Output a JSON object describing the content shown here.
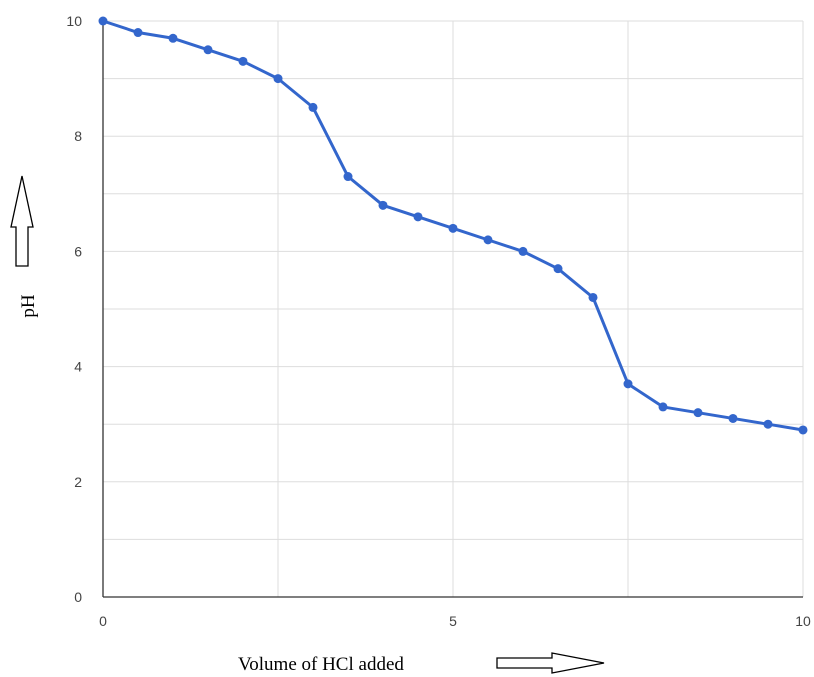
{
  "chart_data": {
    "type": "line",
    "title": "",
    "xlabel": "Volume of HCl added",
    "ylabel": "pH",
    "xlim": [
      0,
      10
    ],
    "ylim": [
      0,
      10
    ],
    "x_ticks": [
      "0",
      "5",
      "10"
    ],
    "y_ticks": [
      "0",
      "2",
      "4",
      "6",
      "8",
      "10"
    ],
    "grid": true,
    "legend": "none",
    "series": [
      {
        "x": [
          0,
          0.5,
          1,
          1.5,
          2,
          2.5,
          3,
          3.5,
          4,
          4.5,
          5,
          5.5,
          6,
          6.5,
          7,
          7.5,
          8,
          8.5,
          9,
          9.5,
          10
        ],
        "values": [
          10,
          9.8,
          9.7,
          9.5,
          9.3,
          9.0,
          8.5,
          7.3,
          6.8,
          6.6,
          6.4,
          6.2,
          6.0,
          5.7,
          5.2,
          3.7,
          3.3,
          3.2,
          3.1,
          3.0,
          2.9
        ],
        "color": "#3366cc"
      }
    ],
    "colors": {
      "line": "#3366cc",
      "grid": "#dddddd",
      "axis": "#333333",
      "arrow": "#000000"
    }
  }
}
